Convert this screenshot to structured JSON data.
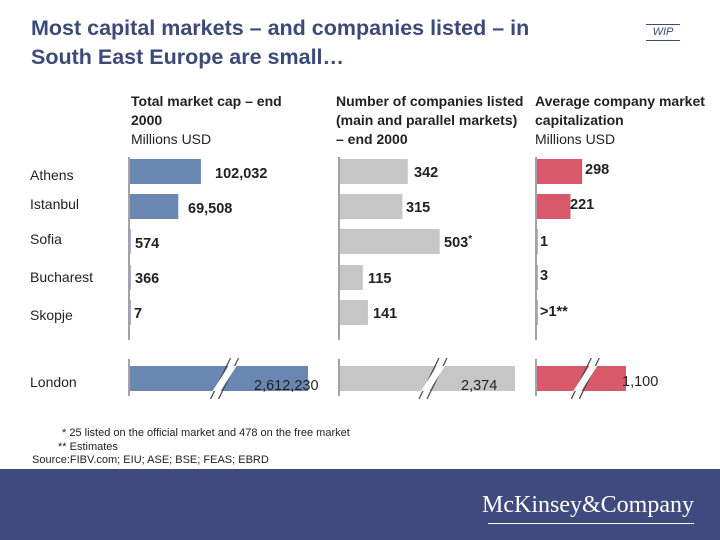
{
  "title": "Most capital markets – and companies listed – in South East Europe are small…",
  "badge": "WIP",
  "columns": [
    {
      "heading_bold": "Total market cap – end 2000",
      "heading_unit": "Millions USD"
    },
    {
      "heading_bold": "Number of companies listed (main and parallel markets) – end 2000",
      "heading_unit": ""
    },
    {
      "heading_bold": "Average company market capitalization",
      "heading_unit": "Millions USD"
    }
  ],
  "colors": {
    "market_cap": "#6a86b2",
    "companies": "#c6c6c6",
    "avg_cap": "#d85a6a",
    "title": "#3c4a78",
    "footer": "#3f4a7e"
  },
  "chart_data": [
    {
      "type": "bar",
      "orientation": "horizontal",
      "title": "Total market cap – end 2000",
      "unit": "Millions USD",
      "categories": [
        "Athens",
        "Istanbul",
        "Sofia",
        "Bucharest",
        "Skopje",
        "London"
      ],
      "values": [
        102032,
        69508,
        574,
        366,
        7,
        2612230
      ],
      "labels": [
        "102,032",
        "69,508",
        "574",
        "366",
        "7",
        "2,612,230"
      ],
      "axis_break": "London",
      "xlim": [
        0,
        118000
      ]
    },
    {
      "type": "bar",
      "orientation": "horizontal",
      "title": "Number of companies listed (main and parallel markets) – end 2000",
      "categories": [
        "Athens",
        "Istanbul",
        "Sofia",
        "Bucharest",
        "Skopje",
        "London"
      ],
      "values": [
        342,
        315,
        503,
        115,
        141,
        2374
      ],
      "labels": [
        "342",
        "315",
        "503",
        "115",
        "141",
        "2,374"
      ],
      "label_marks": [
        "",
        "",
        "*",
        "",
        "",
        ""
      ],
      "axis_break": "London",
      "xlim": [
        0,
        560
      ]
    },
    {
      "type": "bar",
      "orientation": "horizontal",
      "title": "Average company market capitalization",
      "unit": "Millions USD",
      "categories": [
        "Athens",
        "Istanbul",
        "Sofia",
        "Bucharest",
        "Skopje",
        "London"
      ],
      "values": [
        298,
        221,
        1,
        3,
        1,
        1100
      ],
      "labels": [
        "298",
        "221",
        "1",
        "3",
        ">1**",
        "1,100"
      ],
      "axis_break": "London",
      "xlim": [
        0,
        330
      ]
    }
  ],
  "footnotes": [
    "* 25 listed on the official market and 478 on the free market",
    "** Estimates",
    "Source:FIBV.com; EIU; ASE; BSE; FEAS; EBRD"
  ],
  "brand": "McKinsey&Company"
}
